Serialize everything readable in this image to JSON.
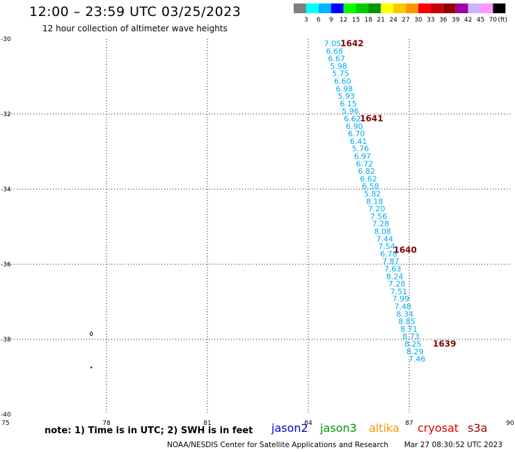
{
  "header": {
    "title": "12:00 – 23:59 UTC 03/25/2023",
    "subtitle": "12 hour collection of altimeter wave heights"
  },
  "color_scale": {
    "colors": [
      "#7f7f7f",
      "#00ffff",
      "#00b4ff",
      "#0000ff",
      "#00ff00",
      "#00cc00",
      "#009600",
      "#ffff00",
      "#ffc800",
      "#ff9600",
      "#ff0000",
      "#c80000",
      "#960000",
      "#a000a0",
      "#c8b4ff",
      "#ff96ff",
      "#000000"
    ],
    "labels": [
      "3",
      "6",
      "9",
      "12",
      "15",
      "18",
      "21",
      "24",
      "27",
      "30",
      "33",
      "36",
      "39",
      "42",
      "45",
      "70"
    ],
    "unit": "(ft)"
  },
  "footer": {
    "note": "note:  1) Time is in UTC;  2) SWH is in feet",
    "satellites": [
      {
        "name": "jason2",
        "color": "#0000cc"
      },
      {
        "name": "jason3",
        "color": "#009600"
      },
      {
        "name": "altika",
        "color": "#ff9600"
      },
      {
        "name": "cryosat",
        "color": "#e00000"
      },
      {
        "name": "s3a",
        "color": "#960000"
      }
    ],
    "credit": "NOAA/NESDIS Center for Satellite Applications and Research",
    "timestamp": "Mar 27 08:30:52 UTC 2023"
  },
  "chart_data": {
    "type": "scatter",
    "title": "12:00 – 23:59 UTC 03/25/2023",
    "xlim": [
      75,
      90
    ],
    "ylim": [
      -40,
      -30
    ],
    "x_ticks": [
      "75",
      "78",
      "81",
      "84",
      "87",
      "90"
    ],
    "y_ticks": [
      "-30",
      "-32",
      "-34",
      "-36",
      "-38",
      "-40"
    ],
    "grid": true,
    "label_color": "#00aaee",
    "points": [
      {
        "lon": 84.72,
        "lat": -30.12,
        "swh": "7.05"
      },
      {
        "lon": 84.78,
        "lat": -30.32,
        "swh": "6.68"
      },
      {
        "lon": 84.84,
        "lat": -30.52,
        "swh": "6.67"
      },
      {
        "lon": 84.9,
        "lat": -30.72,
        "swh": "5.98"
      },
      {
        "lon": 84.96,
        "lat": -30.92,
        "swh": "5.75"
      },
      {
        "lon": 85.02,
        "lat": -31.12,
        "swh": "6.60"
      },
      {
        "lon": 85.07,
        "lat": -31.32,
        "swh": "6.98"
      },
      {
        "lon": 85.13,
        "lat": -31.52,
        "swh": "5.93"
      },
      {
        "lon": 85.19,
        "lat": -31.72,
        "swh": "6.15"
      },
      {
        "lon": 85.25,
        "lat": -31.92,
        "swh": "5.96"
      },
      {
        "lon": 85.31,
        "lat": -32.12,
        "swh": "6.62"
      },
      {
        "lon": 85.37,
        "lat": -32.32,
        "swh": "6.90"
      },
      {
        "lon": 85.43,
        "lat": -32.52,
        "swh": "6.70"
      },
      {
        "lon": 85.49,
        "lat": -32.72,
        "swh": "6.41"
      },
      {
        "lon": 85.55,
        "lat": -32.92,
        "swh": "5.76"
      },
      {
        "lon": 85.61,
        "lat": -33.12,
        "swh": "6.97"
      },
      {
        "lon": 85.67,
        "lat": -33.32,
        "swh": "6.72"
      },
      {
        "lon": 85.73,
        "lat": -33.52,
        "swh": "6.82"
      },
      {
        "lon": 85.79,
        "lat": -33.72,
        "swh": "6.62"
      },
      {
        "lon": 85.85,
        "lat": -33.92,
        "swh": "6.58"
      },
      {
        "lon": 85.91,
        "lat": -34.12,
        "swh": "5.82"
      },
      {
        "lon": 85.97,
        "lat": -34.32,
        "swh": "8.18"
      },
      {
        "lon": 86.03,
        "lat": -34.52,
        "swh": "7.20"
      },
      {
        "lon": 86.09,
        "lat": -34.72,
        "swh": "7.56"
      },
      {
        "lon": 86.15,
        "lat": -34.92,
        "swh": "7.28"
      },
      {
        "lon": 86.21,
        "lat": -35.12,
        "swh": "8.08"
      },
      {
        "lon": 86.27,
        "lat": -35.32,
        "swh": "7.44"
      },
      {
        "lon": 86.33,
        "lat": -35.52,
        "swh": "7.54"
      },
      {
        "lon": 86.39,
        "lat": -35.72,
        "swh": "6.78"
      },
      {
        "lon": 86.45,
        "lat": -35.92,
        "swh": "7.87"
      },
      {
        "lon": 86.51,
        "lat": -36.12,
        "swh": "7.63"
      },
      {
        "lon": 86.57,
        "lat": -36.32,
        "swh": "8.24"
      },
      {
        "lon": 86.63,
        "lat": -36.52,
        "swh": "7.28"
      },
      {
        "lon": 86.69,
        "lat": -36.72,
        "swh": "7.51"
      },
      {
        "lon": 86.75,
        "lat": -36.92,
        "swh": "7.99"
      },
      {
        "lon": 86.81,
        "lat": -37.12,
        "swh": "7.48"
      },
      {
        "lon": 86.87,
        "lat": -37.32,
        "swh": "8.34"
      },
      {
        "lon": 86.93,
        "lat": -37.52,
        "swh": "8.85"
      },
      {
        "lon": 86.99,
        "lat": -37.72,
        "swh": "8.71"
      },
      {
        "lon": 87.05,
        "lat": -37.92,
        "swh": "8.73"
      },
      {
        "lon": 87.11,
        "lat": -38.12,
        "swh": "8.25"
      },
      {
        "lon": 87.17,
        "lat": -38.32,
        "swh": "8.29"
      },
      {
        "lon": 87.23,
        "lat": -38.52,
        "swh": "7.46"
      }
    ],
    "time_labels": [
      {
        "lon": 85.3,
        "lat": -30.12,
        "text": "1642"
      },
      {
        "lon": 85.88,
        "lat": -32.12,
        "text": "1641"
      },
      {
        "lon": 86.88,
        "lat": -35.62,
        "text": "1640"
      },
      {
        "lon": 88.05,
        "lat": -38.12,
        "text": "1639"
      }
    ],
    "time_label_color": "#800000",
    "land_marks": [
      {
        "lon": 77.55,
        "lat": -37.85
      },
      {
        "lon": 77.55,
        "lat": -38.75
      }
    ]
  }
}
